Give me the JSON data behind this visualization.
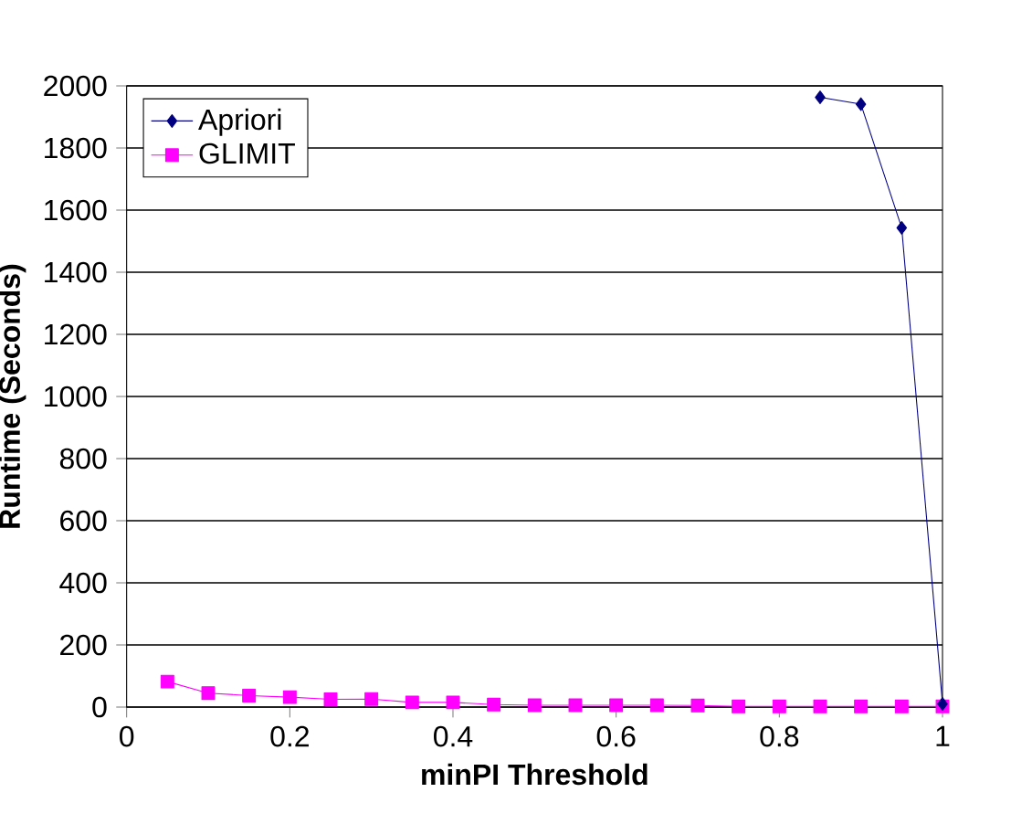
{
  "chart_data": {
    "type": "line",
    "xlabel": "minPI Threshold",
    "ylabel": "Runtime (Seconds)",
    "xlim": [
      0,
      1
    ],
    "xticks": [
      0,
      0.2,
      0.4,
      0.6,
      0.8,
      1
    ],
    "ylim": [
      0,
      2000
    ],
    "yticks": [
      0,
      200,
      400,
      600,
      800,
      1000,
      1200,
      1400,
      1600,
      1800,
      2000
    ],
    "grid": "y",
    "legend": "top left",
    "line_style": "solid",
    "series": [
      {
        "name": "Apriori",
        "color": "#000080",
        "marker": "diamond",
        "x": [
          0.85,
          0.9,
          0.95,
          1
        ],
        "values": [
          1963,
          1941,
          1543,
          10
        ]
      },
      {
        "name": "GLIMIT",
        "color": "#ff00ff",
        "marker": "square",
        "x": [
          0.05,
          0.1,
          0.15,
          0.2,
          0.25,
          0.3,
          0.35,
          0.4,
          0.45,
          0.5,
          0.55,
          0.6,
          0.65,
          0.7,
          0.75,
          0.8,
          0.85,
          0.9,
          0.95,
          1
        ],
        "values": [
          82,
          45,
          37,
          32,
          25,
          26,
          15,
          15,
          8,
          6,
          6,
          6,
          6,
          5,
          2,
          2,
          2,
          2,
          2,
          2
        ]
      }
    ]
  }
}
